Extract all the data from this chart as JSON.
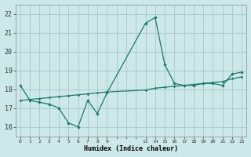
{
  "xlabel": "Humidex (Indice chaleur)",
  "background_color": "#cce8e8",
  "grid_color": "#aacccc",
  "line_color": "#1a7a6a",
  "x_tick_labels": [
    "0",
    "1",
    "2",
    "3",
    "4",
    "5",
    "6",
    "7",
    "8",
    "9",
    "",
    "",
    "",
    "13",
    "14",
    "15",
    "16",
    "17",
    "18",
    "19",
    "20",
    "21",
    "22",
    "23"
  ],
  "ylim": [
    15.5,
    22.5
  ],
  "y_ticks": [
    16,
    17,
    18,
    19,
    20,
    21,
    22
  ],
  "humidex_x": [
    0,
    1,
    2,
    3,
    4,
    5,
    6,
    7,
    8,
    9,
    13,
    14,
    15,
    16,
    17,
    18,
    19,
    20,
    21,
    22,
    23
  ],
  "humidex_y": [
    18.2,
    17.4,
    17.3,
    17.2,
    17.0,
    16.2,
    16.0,
    17.4,
    16.7,
    17.8,
    21.5,
    21.8,
    19.3,
    18.3,
    18.2,
    18.2,
    18.3,
    18.3,
    18.2,
    18.8,
    18.9
  ],
  "trend_y": [
    17.4,
    17.45,
    17.5,
    17.55,
    17.6,
    17.65,
    17.7,
    17.75,
    17.8,
    17.85,
    17.95,
    18.05,
    18.1,
    18.15,
    18.2,
    18.25,
    18.3,
    18.35,
    18.4,
    18.55,
    18.65
  ]
}
